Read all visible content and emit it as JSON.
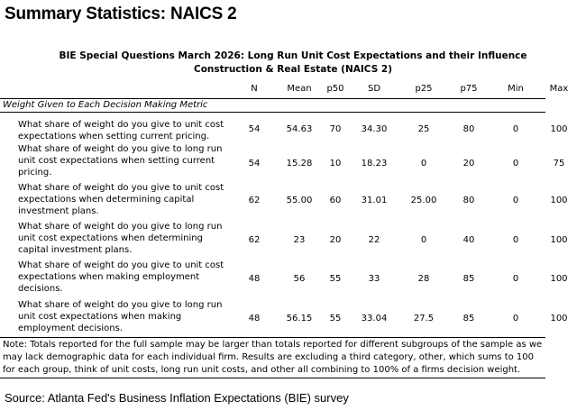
{
  "heading": "Summary Statistics: NAICS 2",
  "subtitle_line1": "BIE Special Questions March 2026: Long Run Unit Cost Expectations and their Influence",
  "subtitle_line2": "Construction & Real Estate (NAICS 2)",
  "columns": [
    "N",
    "Mean",
    "p50",
    "SD",
    "p25",
    "p75",
    "Min",
    "Max"
  ],
  "section_label": "Weight Given to Each Decision Making Metric",
  "rows": [
    {
      "question": "What share of weight do you give to unit cost expectations when setting current pricing.",
      "n": "54",
      "mean": "54.63",
      "p50": "70",
      "sd": "34.30",
      "p25": "25",
      "p75": "80",
      "min": "0",
      "max": "100"
    },
    {
      "question": "What share of weight do you give to long run unit cost expectations when setting current pricing.",
      "n": "54",
      "mean": "15.28",
      "p50": "10",
      "sd": "18.23",
      "p25": "0",
      "p75": "20",
      "min": "0",
      "max": "75"
    },
    {
      "question": "What share of weight do you give to unit cost expectations when determining capital investment plans.",
      "n": "62",
      "mean": "55.00",
      "p50": "60",
      "sd": "31.01",
      "p25": "25.00",
      "p75": "80",
      "min": "0",
      "max": "100"
    },
    {
      "question": "What share of weight do you give to long run unit cost expectations when determining capital investment plans.",
      "n": "62",
      "mean": "23",
      "p50": "20",
      "sd": "22",
      "p25": "0",
      "p75": "40",
      "min": "0",
      "max": "100"
    },
    {
      "question": "What share of weight do you give to unit cost expectations when making employment decisions.",
      "n": "48",
      "mean": "56",
      "p50": "55",
      "sd": "33",
      "p25": "28",
      "p75": "85",
      "min": "0",
      "max": "100"
    },
    {
      "question": "What share of weight do you give to long run unit cost expectations when making employment decisions.",
      "n": "48",
      "mean": "56.15",
      "p50": "55",
      "sd": "33.04",
      "p25": "27.5",
      "p75": "85",
      "min": "0",
      "max": "100"
    }
  ],
  "note": "Note: Totals reported for the full sample may be larger than totals reported for different subgroups of the sample as we may lack demographic data for each individual firm. Results are excluding a third category, other, which sums to 100 for each group, think of unit costs, long run unit costs, and other all combining to 100% of a firms decision weight.",
  "source": "Source: Atlanta Fed's Business Inflation Expectations (BIE) survey"
}
